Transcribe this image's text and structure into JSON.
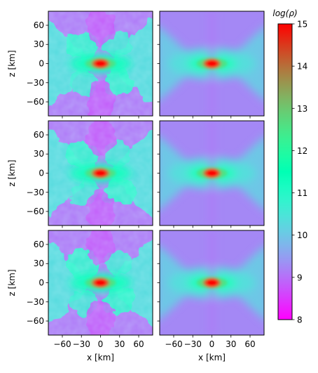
{
  "chart_data": {
    "type": "heatmap",
    "title": "",
    "xlabel": "x [km]",
    "ylabel": "z [km]",
    "xlim": [
      -82,
      82
    ],
    "ylim": [
      -82,
      82
    ],
    "xticks": [
      -60,
      -30,
      0,
      30,
      60
    ],
    "yticks": [
      60,
      30,
      0,
      -30,
      -60
    ],
    "xtick_labels": [
      "−60",
      "−30",
      "0",
      "30",
      "60"
    ],
    "ytick_labels": [
      "60",
      "30",
      "0",
      "−30",
      "−60"
    ],
    "grid": false,
    "colorbar": {
      "label": "log(ρ)",
      "min": 8,
      "max": 15,
      "ticks": [
        8,
        9,
        10,
        11,
        12,
        13,
        14,
        15
      ],
      "tick_labels": [
        "8",
        "9",
        "10",
        "11",
        "12",
        "13",
        "14",
        "15"
      ],
      "colormap": "rainbow"
    },
    "panels": [
      {
        "row": 0,
        "col": 0,
        "style": "turbulent"
      },
      {
        "row": 0,
        "col": 1,
        "style": "smooth"
      },
      {
        "row": 1,
        "col": 0,
        "style": "turbulent"
      },
      {
        "row": 1,
        "col": 1,
        "style": "smooth"
      },
      {
        "row": 2,
        "col": 0,
        "style": "turbulent"
      },
      {
        "row": 2,
        "col": 1,
        "style": "smooth"
      }
    ]
  }
}
